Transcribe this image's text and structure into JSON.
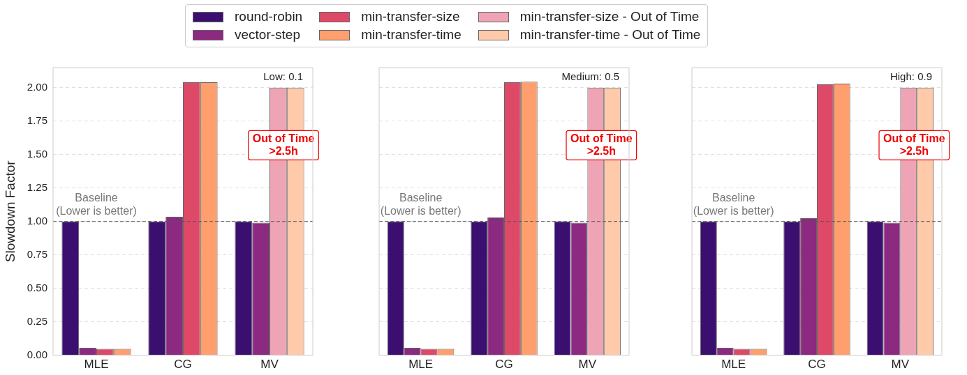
{
  "chart_data": [
    {
      "type": "bar",
      "categories": [
        "MLE",
        "CG",
        "MV"
      ],
      "ylabel": "Slowdown Factor",
      "ylim": [
        0,
        2.15
      ],
      "yticks": [
        {
          "value": 0,
          "label": "0.00"
        },
        {
          "value": 0.25,
          "label": "0.25"
        },
        {
          "value": 0.5,
          "label": "0.50"
        },
        {
          "value": 0.75,
          "label": "0.75"
        },
        {
          "value": 1,
          "label": "1.00"
        },
        {
          "value": 1.25,
          "label": "1.25"
        },
        {
          "value": 1.5,
          "label": "1.50"
        },
        {
          "value": 1.75,
          "label": "1.75"
        },
        {
          "value": 2,
          "label": "2.00"
        }
      ],
      "grid": "y",
      "legend": "top",
      "series": [
        {
          "name": "round-robin",
          "color": "#3b0f70",
          "values": [
            1.0,
            1.0,
            1.0
          ]
        },
        {
          "name": "vector-step",
          "color": "#8c2981",
          "values": [
            0.055,
            1.035,
            0.99
          ]
        },
        {
          "name": "min-transfer-size",
          "color": "#de4968",
          "values": [
            0.048,
            2.04,
            null
          ]
        },
        {
          "name": "min-transfer-time",
          "color": "#fe9f6d",
          "values": [
            0.048,
            2.04,
            null
          ]
        },
        {
          "name": "min-transfer-size - Out of Time",
          "color": "#eea4b4",
          "values": [
            null,
            null,
            2.0
          ]
        },
        {
          "name": "min-transfer-time - Out of Time",
          "color": "#fecaaa",
          "values": [
            null,
            null,
            2.0
          ]
        }
      ],
      "ref_lines": [
        {
          "axis": "y",
          "value": 1.0,
          "label": "Baseline\n(Lower is better)",
          "color": "#555555",
          "line_style": "dashed"
        }
      ],
      "annotations": [
        "Low: 0.1",
        "Out of Time\n>2.5h"
      ]
    },
    {
      "type": "bar",
      "categories": [
        "MLE",
        "CG",
        "MV"
      ],
      "ylim": [
        0,
        2.15
      ],
      "yticks": [
        0,
        0.25,
        0.5,
        0.75,
        1,
        1.25,
        1.5,
        1.75,
        2
      ],
      "grid": "y",
      "tick_labels": "x",
      "series": [
        {
          "color": "#3b0f70",
          "values": [
            1.0,
            1.0,
            1.0
          ]
        },
        {
          "color": "#8c2981",
          "values": [
            0.055,
            1.03,
            0.99
          ]
        },
        {
          "color": "#de4968",
          "values": [
            0.048,
            2.04,
            null
          ]
        },
        {
          "color": "#fe9f6d",
          "values": [
            0.048,
            2.045,
            null
          ]
        },
        {
          "color": "#eea4b4",
          "values": [
            null,
            null,
            2.0
          ]
        },
        {
          "color": "#fecaaa",
          "values": [
            null,
            null,
            2.0
          ]
        }
      ],
      "ref_lines": [
        {
          "axis": "y",
          "value": 1.0,
          "label": "Baseline\n(Lower is better)",
          "color": "#555555",
          "line_style": "dashed"
        }
      ],
      "annotations": [
        "Medium: 0.5",
        "Out of Time\n>2.5h"
      ]
    },
    {
      "type": "bar",
      "categories": [
        "MLE",
        "CG",
        "MV"
      ],
      "ylim": [
        0,
        2.15
      ],
      "yticks": [
        0,
        0.25,
        0.5,
        0.75,
        1,
        1.25,
        1.5,
        1.75,
        2
      ],
      "grid": "y",
      "tick_labels": "x",
      "series": [
        {
          "color": "#3b0f70",
          "values": [
            1.0,
            1.0,
            1.0
          ]
        },
        {
          "color": "#8c2981",
          "values": [
            0.055,
            1.025,
            0.99
          ]
        },
        {
          "color": "#de4968",
          "values": [
            0.048,
            2.025,
            null
          ]
        },
        {
          "color": "#fe9f6d",
          "values": [
            0.048,
            2.03,
            null
          ]
        },
        {
          "color": "#eea4b4",
          "values": [
            null,
            null,
            2.0
          ]
        },
        {
          "color": "#fecaaa",
          "values": [
            null,
            null,
            2.0
          ]
        }
      ],
      "ref_lines": [
        {
          "axis": "y",
          "value": 1.0,
          "label": "Baseline\n(Lower is better)",
          "color": "#555555",
          "line_style": "dashed"
        }
      ],
      "annotations": [
        "High: 0.9",
        "Out of Time\n>2.5h"
      ]
    }
  ]
}
